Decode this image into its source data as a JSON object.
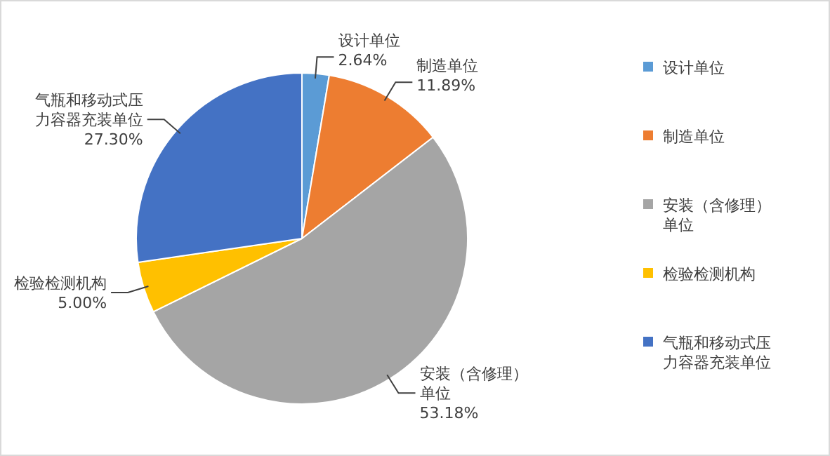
{
  "chart_data": {
    "type": "pie",
    "categories": [
      "设计单位",
      "制造单位",
      "安装（含修理）单位",
      "检验检测机构",
      "气瓶和移动式压力容器充装单位"
    ],
    "values": [
      2.64,
      11.89,
      53.18,
      5.0,
      27.3
    ],
    "value_labels": [
      "2.64%",
      "11.89%",
      "53.18%",
      "5.00%",
      "27.30%"
    ],
    "colors": [
      "#5b9bd5",
      "#ed7d31",
      "#a5a5a5",
      "#ffc000",
      "#4472c4"
    ],
    "legend": "right"
  }
}
